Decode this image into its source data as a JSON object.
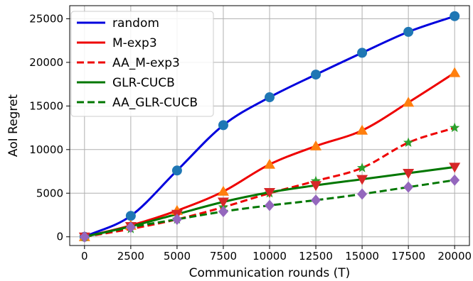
{
  "chart_data": {
    "type": "line",
    "xlabel": "Communication rounds (T)",
    "ylabel": "AoI Regret",
    "x_ticks": [
      "0",
      "2500",
      "5000",
      "7500",
      "10000",
      "12500",
      "15000",
      "17500",
      "20000"
    ],
    "y_ticks": [
      "0",
      "5000",
      "10000",
      "15000",
      "20000",
      "25000"
    ],
    "xlim": [
      -800,
      20800
    ],
    "ylim": [
      -1000,
      26500
    ],
    "grid": true,
    "legend_position": "top-left",
    "x": [
      0,
      2500,
      5000,
      7500,
      10000,
      12500,
      15000,
      17500,
      20000
    ],
    "series": [
      {
        "name": "random",
        "color": "#0000dd",
        "dash": "solid",
        "marker": "circle",
        "marker_color": "#1f77b4",
        "values": [
          0,
          2400,
          7600,
          12800,
          16000,
          18600,
          21100,
          23500,
          25300
        ]
      },
      {
        "name": "M-exp3",
        "color": "#ee0000",
        "dash": "solid",
        "marker": "triangle-up",
        "marker_color": "#ff7f0e",
        "values": [
          0,
          1300,
          3000,
          5200,
          8300,
          10400,
          12200,
          15400,
          18800
        ]
      },
      {
        "name": "AA_M-exp3",
        "color": "#ee0000",
        "dash": "dashed",
        "marker": "star",
        "marker_color": "#2ca02c",
        "values": [
          0,
          900,
          2000,
          3400,
          5000,
          6400,
          7900,
          10800,
          12500
        ]
      },
      {
        "name": "GLR-CUCB",
        "color": "#007700",
        "dash": "solid",
        "marker": "triangle-down",
        "marker_color": "#d62728",
        "values": [
          0,
          1200,
          2600,
          4000,
          5100,
          5900,
          6600,
          7300,
          8000
        ]
      },
      {
        "name": "AA_GLR-CUCB",
        "color": "#007700",
        "dash": "dashed",
        "marker": "diamond",
        "marker_color": "#9467bd",
        "values": [
          0,
          1100,
          2000,
          2900,
          3600,
          4200,
          4900,
          5700,
          6500
        ]
      }
    ]
  }
}
